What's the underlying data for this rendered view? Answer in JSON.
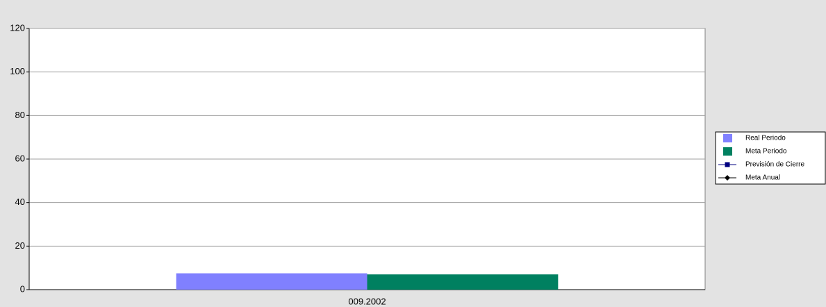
{
  "chart_data": {
    "type": "bar",
    "categories": [
      "009.2002"
    ],
    "series": [
      {
        "name": "Real Periodo",
        "color": "#8080ff",
        "values": [
          7.5
        ]
      },
      {
        "name": "Meta Periodo",
        "color": "#008060",
        "values": [
          7
        ]
      },
      {
        "name": "Previsión de Cierre",
        "color": "#000080",
        "type": "line",
        "marker": "square",
        "values": [
          null
        ]
      },
      {
        "name": "Meta Anual",
        "color": "#000000",
        "type": "line",
        "marker": "diamond",
        "values": [
          null
        ]
      }
    ],
    "ylim": [
      0,
      120
    ],
    "yticks": [
      0,
      20,
      40,
      60,
      80,
      100,
      120
    ],
    "grid": true,
    "legend": "right"
  }
}
